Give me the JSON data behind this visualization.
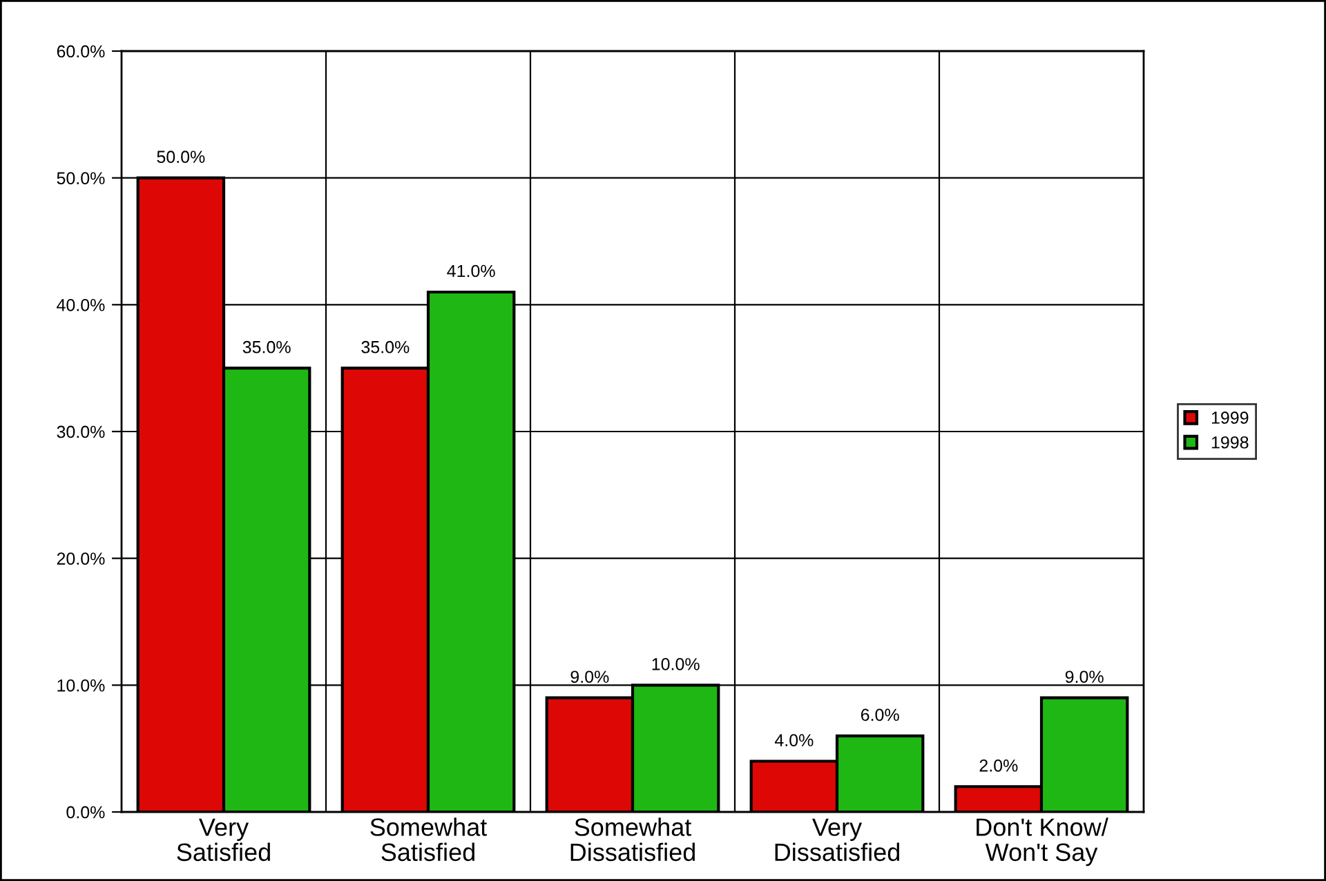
{
  "chart_data": {
    "type": "bar",
    "categories": [
      "Very\nSatisfied",
      "Somewhat\nSatisfied",
      "Somewhat\nDissatisfied",
      "Very\nDissatisfied",
      "Don't Know/\nWon't Say"
    ],
    "series": [
      {
        "name": "1999",
        "color": "#dd0806",
        "values": [
          50,
          35,
          9,
          4,
          2
        ],
        "value_labels": [
          "50.0%",
          "35.0%",
          "9.0%",
          "4.0%",
          "2.0%"
        ]
      },
      {
        "name": "1998",
        "color": "#1fb714",
        "values": [
          35,
          41,
          10,
          6,
          9
        ],
        "value_labels": [
          "35.0%",
          "41.0%",
          "10.0%",
          "6.0%",
          "9.0%"
        ]
      }
    ],
    "ylim": [
      0,
      60
    ],
    "yticks": [
      {
        "value": 0,
        "label": "0.0%"
      },
      {
        "value": 10,
        "label": "10.0%"
      },
      {
        "value": 20,
        "label": "20.0%"
      },
      {
        "value": 30,
        "label": "30.0%"
      },
      {
        "value": 40,
        "label": "40.0%"
      },
      {
        "value": 50,
        "label": "50.0%"
      },
      {
        "value": 60,
        "label": "60.0%"
      }
    ],
    "grid": true,
    "legend": "right"
  }
}
